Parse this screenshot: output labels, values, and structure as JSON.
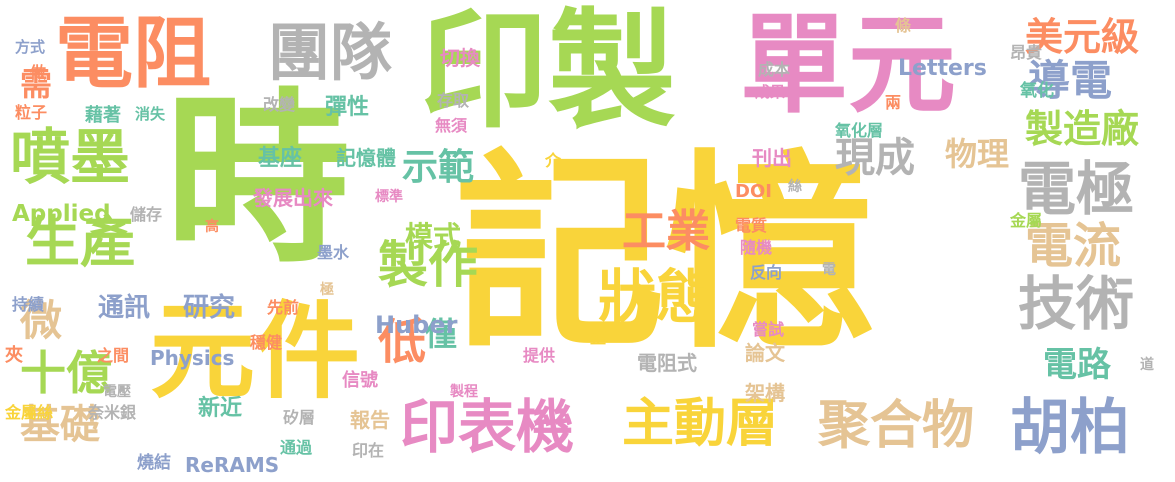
{
  "words": [
    {
      "text": "記憶",
      "color": "#f9d43a",
      "name": "word-ji-yi"
    },
    {
      "text": "時",
      "color": "#a6d854",
      "name": "word-shi"
    },
    {
      "text": "印製",
      "color": "#a6d854",
      "name": "word-yin-zhi"
    },
    {
      "text": "單元",
      "color": "#e78ac3",
      "name": "word-dan-yuan"
    },
    {
      "text": "電阻",
      "color": "#fc8d62",
      "name": "word-dian-zu"
    },
    {
      "text": "元件",
      "color": "#f9d43a",
      "name": "word-yuan-jian"
    },
    {
      "text": "團隊",
      "color": "#b3b3b3",
      "name": "word-tuan-dui"
    },
    {
      "text": "噴墨",
      "color": "#a6d854",
      "name": "word-pen-mo"
    },
    {
      "text": "生產",
      "color": "#a6d854",
      "name": "word-sheng-chan"
    },
    {
      "text": "電極",
      "color": "#b3b3b3",
      "name": "word-dian-ji"
    },
    {
      "text": "技術",
      "color": "#b3b3b3",
      "name": "word-ji-shu"
    },
    {
      "text": "導電",
      "color": "#8da0cb",
      "name": "word-dao-dian"
    },
    {
      "text": "美元級",
      "color": "#fc8d62",
      "name": "word-mei-yuan-ji"
    },
    {
      "text": "製造廠",
      "color": "#a6d854",
      "name": "word-zhi-zao-chang"
    },
    {
      "text": "電流",
      "color": "#e5c494",
      "name": "word-dian-liu"
    },
    {
      "text": "胡柏",
      "color": "#8da0cb",
      "name": "word-hu-bo"
    },
    {
      "text": "聚合物",
      "color": "#e5c494",
      "name": "word-ju-he-wu"
    },
    {
      "text": "主動層",
      "color": "#f9d43a",
      "name": "word-zhu-dong-ceng"
    },
    {
      "text": "印表機",
      "color": "#e78ac3",
      "name": "word-yin-biao-ji"
    },
    {
      "text": "狀態",
      "color": "#f9d43a",
      "name": "word-zhuang-tai"
    },
    {
      "text": "製作",
      "color": "#a6d854",
      "name": "word-zhi-zuo"
    },
    {
      "text": "工業",
      "color": "#fc8d62",
      "name": "word-gong-ye"
    },
    {
      "text": "現成",
      "color": "#b3b3b3",
      "name": "word-xian-cheng"
    },
    {
      "text": "物理",
      "color": "#e5c494",
      "name": "word-wu-li"
    },
    {
      "text": "示範",
      "color": "#66c2a5",
      "name": "word-shi-fan"
    },
    {
      "text": "低",
      "color": "#fc8d62",
      "name": "word-di"
    },
    {
      "text": "僅",
      "color": "#66c2a5",
      "name": "word-jin"
    },
    {
      "text": "十億",
      "color": "#a6d854",
      "name": "word-shi-yi"
    },
    {
      "text": "基礎",
      "color": "#e5c494",
      "name": "word-ji-chu"
    },
    {
      "text": "微",
      "color": "#e5c494",
      "name": "word-wei"
    },
    {
      "text": "研究",
      "color": "#8da0cb",
      "name": "word-yan-jiu"
    },
    {
      "text": "通訊",
      "color": "#8da0cb",
      "name": "word-tong-xun"
    },
    {
      "text": "Huber",
      "color": "#8da0cb",
      "name": "word-huber"
    },
    {
      "text": "電路",
      "color": "#66c2a5",
      "name": "word-dian-lu"
    },
    {
      "text": "模式",
      "color": "#a6d854",
      "name": "word-mo-shi"
    },
    {
      "text": "Applied",
      "color": "#a6d854",
      "name": "word-applied"
    },
    {
      "text": "Physics",
      "color": "#8da0cb",
      "name": "word-physics"
    },
    {
      "text": "Letters",
      "color": "#8da0cb",
      "name": "word-letters"
    },
    {
      "text": "ReRAMS",
      "color": "#8da0cb",
      "name": "word-rerams"
    },
    {
      "text": "DOI",
      "color": "#fc8d62",
      "name": "word-doi"
    },
    {
      "text": "需",
      "color": "#fc8d62",
      "name": "word-xu"
    },
    {
      "text": "基座",
      "color": "#66c2a5",
      "name": "word-ji-zuo"
    },
    {
      "text": "記憶體",
      "color": "#66c2a5",
      "name": "word-ji-yi-ti"
    },
    {
      "text": "彈性",
      "color": "#66c2a5",
      "name": "word-tan-xing"
    },
    {
      "text": "切換",
      "color": "#e78ac3",
      "name": "word-qie-huan"
    },
    {
      "text": "發展出來",
      "color": "#e78ac3",
      "name": "word-fa-zhan-chu-lai"
    },
    {
      "text": "刊出",
      "color": "#e78ac3",
      "name": "word-kan-chu"
    },
    {
      "text": "新近",
      "color": "#66c2a5",
      "name": "word-xin-jin"
    },
    {
      "text": "報告",
      "color": "#e5c494",
      "name": "word-bao-gao"
    },
    {
      "text": "信號",
      "color": "#e78ac3",
      "name": "word-xin-hao"
    },
    {
      "text": "論文",
      "color": "#e5c494",
      "name": "word-lun-wen"
    },
    {
      "text": "架構",
      "color": "#e5c494",
      "name": "word-jia-gou"
    },
    {
      "text": "電阻式",
      "color": "#b3b3b3",
      "name": "word-dian-zu-shi"
    },
    {
      "text": "提供",
      "color": "#e78ac3",
      "name": "word-ti-gong"
    },
    {
      "text": "儲存",
      "color": "#b3b3b3",
      "name": "word-chu-cun"
    },
    {
      "text": "藉著",
      "color": "#66c2a5",
      "name": "word-jie-zhu"
    },
    {
      "text": "消失",
      "color": "#66c2a5",
      "name": "word-xiao-shi"
    },
    {
      "text": "改變",
      "color": "#b3b3b3",
      "name": "word-gai-bian"
    },
    {
      "text": "存取",
      "color": "#b3b3b3",
      "name": "word-cun-qu"
    },
    {
      "text": "無須",
      "color": "#e78ac3",
      "name": "word-wu-xu"
    },
    {
      "text": "成本",
      "color": "#b3b3b3",
      "name": "word-cheng-ben"
    },
    {
      "text": "成果",
      "color": "#e78ac3",
      "name": "word-cheng-guo"
    },
    {
      "text": "昂貴",
      "color": "#b3b3b3",
      "name": "word-ang-gui"
    },
    {
      "text": "氧化",
      "color": "#66c2a5",
      "name": "word-yang-hua"
    },
    {
      "text": "氧化層",
      "color": "#66c2a5",
      "name": "word-yang-hua-ceng"
    },
    {
      "text": "兩",
      "color": "#fc8d62",
      "name": "word-liang"
    },
    {
      "text": "條",
      "color": "#e5c494",
      "name": "word-tiao"
    },
    {
      "text": "絲",
      "color": "#b3b3b3",
      "name": "word-si"
    },
    {
      "text": "金屬",
      "color": "#a6d854",
      "name": "word-jin-shu"
    },
    {
      "text": "電質",
      "color": "#fc8d62",
      "name": "word-dian-zhi"
    },
    {
      "text": "隨機",
      "color": "#e78ac3",
      "name": "word-sui-ji"
    },
    {
      "text": "反向",
      "color": "#8da0cb",
      "name": "word-fan-xiang"
    },
    {
      "text": "嘗試",
      "color": "#e78ac3",
      "name": "word-chang-shi"
    },
    {
      "text": "電",
      "color": "#b3b3b3",
      "name": "word-dian"
    },
    {
      "text": "介",
      "color": "#f9d43a",
      "name": "word-jie"
    },
    {
      "text": "標準",
      "color": "#e78ac3",
      "name": "word-biao-zhun"
    },
    {
      "text": "高",
      "color": "#fc8d62",
      "name": "word-gao"
    },
    {
      "text": "墨水",
      "color": "#8da0cb",
      "name": "word-mo-shui"
    },
    {
      "text": "極",
      "color": "#e5c494",
      "name": "word-ji"
    },
    {
      "text": "先前",
      "color": "#fc8d62",
      "name": "word-xian-qian"
    },
    {
      "text": "穩健",
      "color": "#fc8d62",
      "name": "word-wen-jian"
    },
    {
      "text": "之間",
      "color": "#fc8d62",
      "name": "word-zhi-jian"
    },
    {
      "text": "持續",
      "color": "#8da0cb",
      "name": "word-chi-xu"
    },
    {
      "text": "夾",
      "color": "#fc8d62",
      "name": "word-jia"
    },
    {
      "text": "電壓",
      "color": "#b3b3b3",
      "name": "word-dian-ya"
    },
    {
      "text": "金屬絲",
      "color": "#f9d43a",
      "name": "word-jin-shu-si"
    },
    {
      "text": "奈米銀",
      "color": "#b3b3b3",
      "name": "word-nai-mi-yin"
    },
    {
      "text": "燒結",
      "color": "#8da0cb",
      "name": "word-shao-jie"
    },
    {
      "text": "通過",
      "color": "#66c2a5",
      "name": "word-tong-guo"
    },
    {
      "text": "矽層",
      "color": "#b3b3b3",
      "name": "word-xi-ceng"
    },
    {
      "text": "製程",
      "color": "#e78ac3",
      "name": "word-zhi-cheng"
    },
    {
      "text": "印在",
      "color": "#b3b3b3",
      "name": "word-yin-zai"
    },
    {
      "text": "整",
      "color": "#f9d43a",
      "name": "word-zheng"
    },
    {
      "text": "方式",
      "color": "#8da0cb",
      "name": "word-fang-shi"
    },
    {
      "text": "做",
      "color": "#fc8d62",
      "name": "word-zuo"
    },
    {
      "text": "粒子",
      "color": "#fc8d62",
      "name": "word-li-zi"
    },
    {
      "text": "道",
      "color": "#b3b3b3",
      "name": "word-dao"
    }
  ]
}
